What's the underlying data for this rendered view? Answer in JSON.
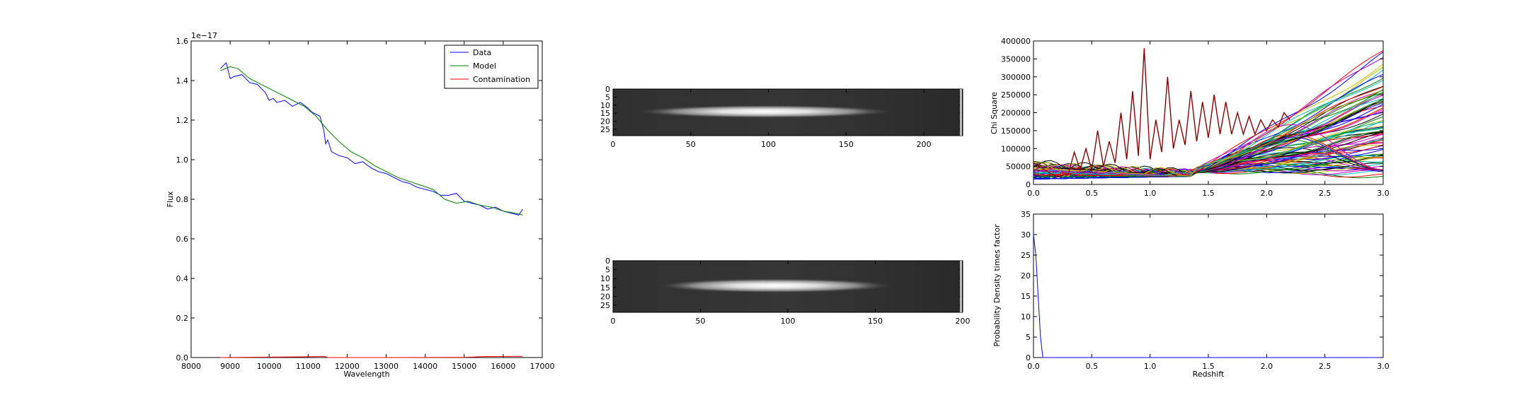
{
  "chart_data": [
    {
      "type": "line",
      "xlabel": "Wavelength",
      "ylabel": "Flux",
      "offset_text": "1e−17",
      "xlim": [
        8000,
        17000
      ],
      "ylim": [
        0.0,
        1.6
      ],
      "xticks": [
        "8000",
        "9000",
        "10000",
        "11000",
        "12000",
        "13000",
        "14000",
        "15000",
        "16000",
        "17000"
      ],
      "yticks": [
        "0.0",
        "0.2",
        "0.4",
        "0.6",
        "0.8",
        "1.0",
        "1.2",
        "1.4",
        "1.6"
      ],
      "legend": {
        "placement": "top-right"
      },
      "series": [
        {
          "name": "Data",
          "color": "#0000ff",
          "x": [
            8750,
            8900,
            9000,
            9100,
            9300,
            9500,
            9700,
            9900,
            10000,
            10100,
            10200,
            10400,
            10600,
            10800,
            11000,
            11100,
            11300,
            11400,
            11450,
            11500,
            11600,
            11800,
            12000,
            12200,
            12400,
            12600,
            12800,
            13000,
            13200,
            13400,
            13600,
            13800,
            14000,
            14200,
            14400,
            14600,
            14800,
            15000,
            15200,
            15400,
            15600,
            15800,
            16000,
            16200,
            16400,
            16500
          ],
          "y": [
            1.46,
            1.49,
            1.41,
            1.42,
            1.43,
            1.39,
            1.38,
            1.34,
            1.3,
            1.31,
            1.29,
            1.3,
            1.27,
            1.29,
            1.26,
            1.24,
            1.22,
            1.15,
            1.08,
            1.1,
            1.04,
            1.02,
            1.01,
            0.98,
            0.99,
            0.96,
            0.94,
            0.93,
            0.91,
            0.89,
            0.88,
            0.86,
            0.85,
            0.84,
            0.82,
            0.82,
            0.83,
            0.79,
            0.78,
            0.77,
            0.75,
            0.76,
            0.74,
            0.73,
            0.72,
            0.75
          ]
        },
        {
          "name": "Model",
          "color": "#008000",
          "x": [
            8750,
            9000,
            9200,
            9500,
            9800,
            10000,
            10300,
            10600,
            10900,
            11200,
            11500,
            11800,
            12100,
            12400,
            12700,
            13000,
            13300,
            13600,
            13900,
            14200,
            14500,
            14800,
            15100,
            15400,
            15700,
            16000,
            16300,
            16500
          ],
          "y": [
            1.45,
            1.47,
            1.46,
            1.41,
            1.38,
            1.36,
            1.33,
            1.3,
            1.27,
            1.22,
            1.15,
            1.09,
            1.04,
            1.01,
            0.97,
            0.94,
            0.91,
            0.89,
            0.87,
            0.85,
            0.8,
            0.78,
            0.79,
            0.77,
            0.76,
            0.74,
            0.73,
            0.72
          ]
        },
        {
          "name": "Contamination",
          "color": "#ff0000",
          "x": [
            8750,
            10000,
            11000,
            11400,
            11500,
            13000,
            15000,
            15500,
            16500
          ],
          "y": [
            0.0,
            0.002,
            0.004,
            0.006,
            0.0,
            0.0,
            0.001,
            0.005,
            0.006
          ]
        }
      ]
    },
    {
      "type": "heatmap",
      "xlim": [
        0,
        225
      ],
      "ylim": [
        0,
        29
      ],
      "xticks": [
        "0",
        "50",
        "100",
        "150",
        "200"
      ],
      "yticks": [
        "0",
        "5",
        "10",
        "15",
        "20",
        "25"
      ],
      "trace": {
        "x_start": 15,
        "x_end": 180,
        "y_center": 14
      }
    },
    {
      "type": "heatmap",
      "xlim": [
        0,
        200
      ],
      "ylim": [
        0,
        29
      ],
      "xticks": [
        "0",
        "50",
        "100",
        "150",
        "200"
      ],
      "yticks": [
        "0",
        "5",
        "10",
        "15",
        "20",
        "25"
      ],
      "trace": {
        "x_start": 25,
        "x_end": 160,
        "y_center": 14
      }
    },
    {
      "type": "line",
      "ylabel": "Chi Square",
      "xlim": [
        0.0,
        3.0
      ],
      "ylim": [
        0,
        400000
      ],
      "xticks": [
        "0.0",
        "0.5",
        "1.0",
        "1.5",
        "2.0",
        "2.5",
        "3.0"
      ],
      "yticks": [
        "0",
        "50000",
        "100000",
        "150000",
        "200000",
        "250000",
        "300000",
        "350000",
        "400000"
      ],
      "peak_series": {
        "color": "#8b0000",
        "x": [
          0.0,
          0.2,
          0.3,
          0.35,
          0.4,
          0.45,
          0.5,
          0.55,
          0.6,
          0.65,
          0.7,
          0.75,
          0.8,
          0.85,
          0.9,
          0.95,
          1.0,
          1.05,
          1.1,
          1.15,
          1.2,
          1.25,
          1.3,
          1.35,
          1.4,
          1.45,
          1.5,
          1.55,
          1.6,
          1.65,
          1.7,
          1.75,
          1.8,
          1.85,
          1.9,
          1.95,
          2.0,
          2.05,
          2.1,
          2.15,
          2.2
        ],
        "y": [
          60000,
          20000,
          30000,
          90000,
          40000,
          100000,
          40000,
          150000,
          50000,
          120000,
          60000,
          200000,
          70000,
          260000,
          80000,
          380000,
          70000,
          180000,
          90000,
          300000,
          100000,
          180000,
          110000,
          260000,
          120000,
          230000,
          130000,
          250000,
          140000,
          230000,
          140000,
          200000,
          140000,
          190000,
          140000,
          180000,
          150000,
          180000,
          160000,
          200000,
          180000
        ]
      },
      "curve_count": 90
    },
    {
      "type": "line",
      "xlabel": "Redshift",
      "ylabel": "Probability Density times factor",
      "xlim": [
        0.0,
        3.0
      ],
      "ylim": [
        0,
        35
      ],
      "xticks": [
        "0.0",
        "0.5",
        "1.0",
        "1.5",
        "2.0",
        "2.5",
        "3.0"
      ],
      "yticks": [
        "0",
        "5",
        "10",
        "15",
        "20",
        "25",
        "30",
        "35"
      ],
      "series": [
        {
          "color": "#0000ff",
          "x": [
            0.0,
            0.02,
            0.06,
            0.08,
            3.0
          ],
          "y": [
            30,
            25,
            5,
            0,
            0
          ]
        }
      ]
    }
  ]
}
